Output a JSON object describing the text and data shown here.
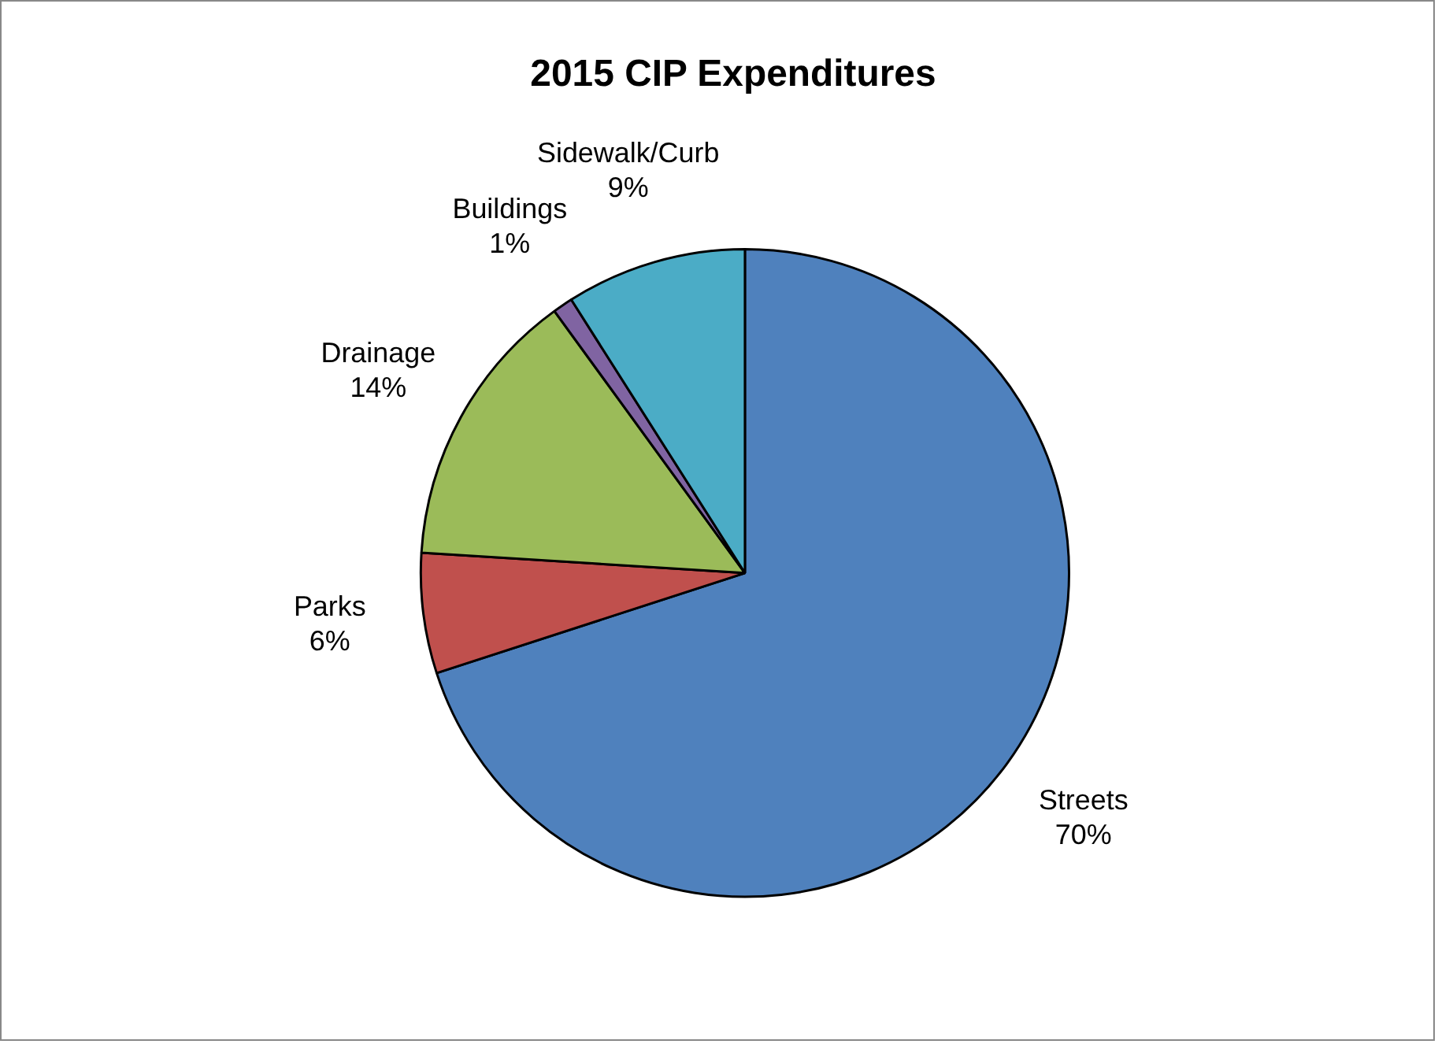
{
  "chart_data": {
    "type": "pie",
    "title": "2015 CIP Expenditures",
    "categories": [
      "Streets",
      "Parks",
      "Drainage",
      "Buildings",
      "Sidewalk/Curb"
    ],
    "values": [
      70,
      6,
      14,
      1,
      9
    ],
    "value_labels": [
      "70%",
      "6%",
      "14%",
      "1%",
      "9%"
    ],
    "colors": [
      "#4f81bd",
      "#c0504d",
      "#9bbb59",
      "#8064a2",
      "#4bacc6"
    ],
    "legend": false
  }
}
